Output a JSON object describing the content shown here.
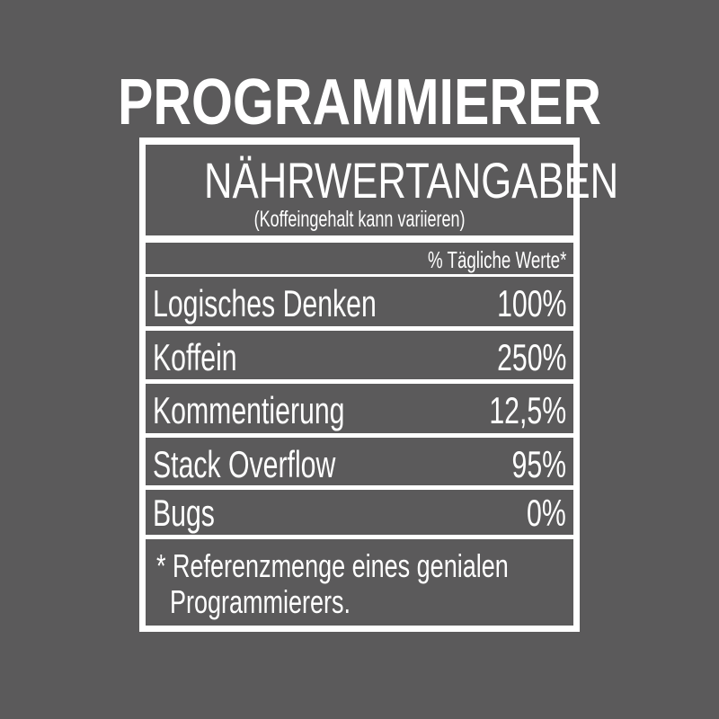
{
  "title": "PROGRAMMIERER",
  "header": {
    "heading": "NÄHRWERTANGABEN",
    "subheading": "(Koffeingehalt kann variieren)"
  },
  "daily_values_label": "% Tägliche Werte*",
  "rows": [
    {
      "label": "Logisches Denken",
      "value": "100%"
    },
    {
      "label": "Koffein",
      "value": "250%"
    },
    {
      "label": "Kommentierung",
      "value": "12,5%"
    },
    {
      "label": "Stack Overflow",
      "value": "95%"
    },
    {
      "label": "Bugs",
      "value": "0%"
    }
  ],
  "footnote": "* Referenzmenge eines genialen\n  Programmierers.",
  "colors": {
    "background": "#5b5a5b",
    "foreground": "#ffffff"
  }
}
